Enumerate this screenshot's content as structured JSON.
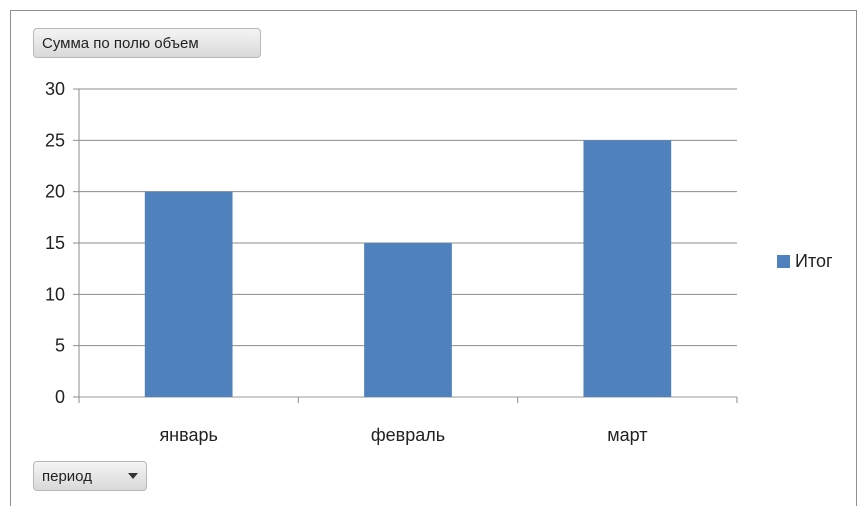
{
  "buttons": {
    "value_field": "Сумма по полю объем",
    "axis_field": "период"
  },
  "chart_data": {
    "type": "bar",
    "title": "",
    "xlabel": "",
    "ylabel": "",
    "categories": [
      "январь",
      "февраль",
      "март"
    ],
    "series": [
      {
        "name": "Итог",
        "values": [
          20,
          15,
          25
        ],
        "color": "#4f81bd"
      }
    ],
    "ylim": [
      0,
      30
    ],
    "yticks": [
      0,
      5,
      10,
      15,
      20,
      25,
      30
    ],
    "grid": true,
    "legend": "right"
  }
}
